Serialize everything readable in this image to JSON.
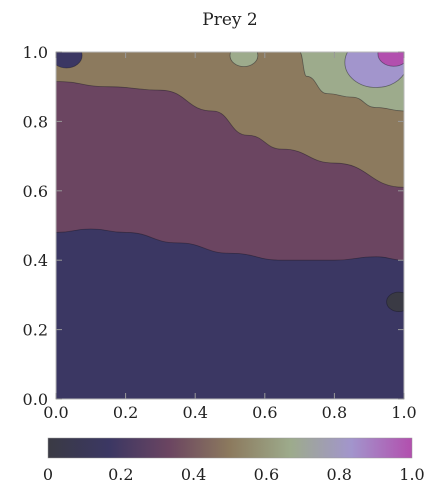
{
  "chart_data": {
    "type": "heatmap",
    "subtype": "contour",
    "title": "Prey 2",
    "xlabel": "",
    "ylabel": "",
    "xlim": [
      0,
      1
    ],
    "ylim": [
      0,
      1
    ],
    "x_ticks": [
      "0.0",
      "0.2",
      "0.4",
      "0.6",
      "0.8",
      "1.0"
    ],
    "y_ticks": [
      "0.0",
      "0.2",
      "0.4",
      "0.6",
      "0.8",
      "1.0"
    ],
    "colorbar": {
      "range": [
        0,
        1
      ],
      "tick_labels": [
        "0",
        "0.2",
        "0.4",
        "0.6",
        "0.8",
        "1.0"
      ],
      "colors": [
        "#3a3a44",
        "#3b3763",
        "#6b4561",
        "#8c7a5e",
        "#9dab8c",
        "#a295cc",
        "#b24fae"
      ]
    },
    "contour_levels": [
      {
        "level": 0.1,
        "color": "#3b3763"
      },
      {
        "level": 0.3,
        "color": "#6b4561"
      },
      {
        "level": 0.5,
        "color": "#8c7a5e"
      },
      {
        "level": 0.7,
        "color": "#9dab8c"
      },
      {
        "level": 0.8,
        "color": "#a295cc"
      },
      {
        "level": 0.9,
        "color": "#b24fae"
      }
    ],
    "boundaries": [
      {
        "between": "0.1-0.3",
        "points": [
          [
            0,
            0.48
          ],
          [
            0.1,
            0.49
          ],
          [
            0.2,
            0.48
          ],
          [
            0.35,
            0.45
          ],
          [
            0.5,
            0.42
          ],
          [
            0.65,
            0.4
          ],
          [
            0.8,
            0.4
          ],
          [
            0.92,
            0.41
          ],
          [
            1,
            0.4
          ]
        ]
      },
      {
        "between": "0.3-0.5",
        "points": [
          [
            0,
            0.915
          ],
          [
            0.15,
            0.9
          ],
          [
            0.3,
            0.89
          ],
          [
            0.45,
            0.83
          ],
          [
            0.55,
            0.76
          ],
          [
            0.65,
            0.72
          ],
          [
            0.8,
            0.68
          ],
          [
            1,
            0.61
          ]
        ]
      },
      {
        "between": "0.5-0.7",
        "points": [
          [
            0.7,
            1.0
          ],
          [
            0.72,
            0.93
          ],
          [
            0.78,
            0.88
          ],
          [
            0.85,
            0.87
          ],
          [
            0.92,
            0.84
          ],
          [
            1,
            0.83
          ]
        ]
      }
    ],
    "features": [
      {
        "kind": "low-spot",
        "level": 0.05,
        "center": [
          0.985,
          0.28
        ],
        "note": "dark region at right edge"
      },
      {
        "kind": "low-spot",
        "level": 0.1,
        "center": [
          0.03,
          0.99
        ],
        "note": "corner dip top-left"
      },
      {
        "kind": "high-spot",
        "level": 0.7,
        "center": [
          0.54,
          0.99
        ]
      },
      {
        "kind": "high-spot",
        "level": 0.8,
        "center": [
          0.92,
          0.97
        ]
      },
      {
        "kind": "high-spot",
        "level": 0.9,
        "center": [
          0.97,
          0.995
        ]
      }
    ]
  }
}
